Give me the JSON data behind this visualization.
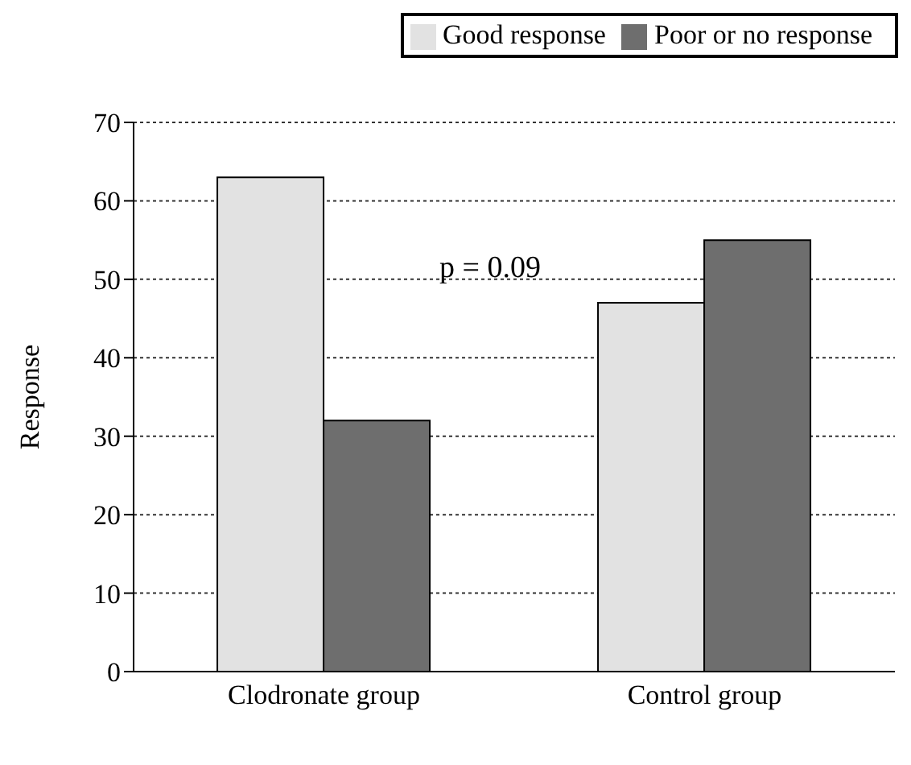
{
  "chart_data": {
    "type": "bar",
    "ylabel": "Response",
    "categories": [
      "Clodronate group",
      "Control group"
    ],
    "series": [
      {
        "name": "Good response",
        "color": "#e2e2e2",
        "values": [
          63,
          47
        ]
      },
      {
        "name": "Poor or no response",
        "color": "#6e6e6e",
        "values": [
          32,
          55
        ]
      }
    ],
    "ylim": [
      0,
      70
    ],
    "yticks": [
      0,
      10,
      20,
      30,
      40,
      50,
      60,
      70
    ],
    "grid": "y",
    "legend": "top right",
    "annotations": [
      "p = 0.09"
    ]
  }
}
